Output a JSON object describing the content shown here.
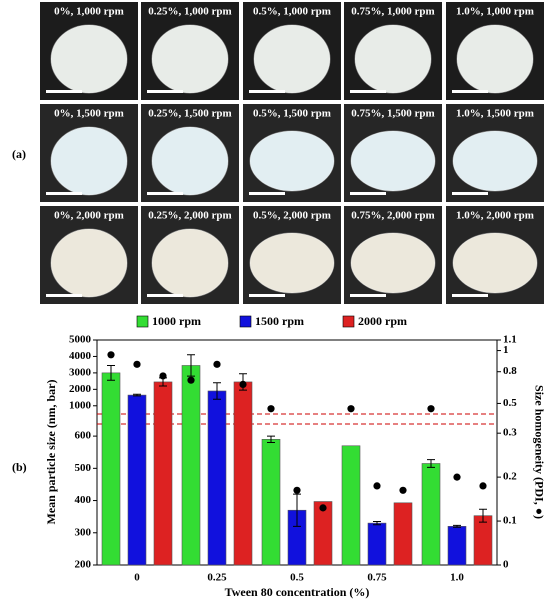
{
  "panel_a": {
    "label": "(a)",
    "rows": [
      [
        "0%, 1,000 rpm",
        "0.25%, 1,000 rpm",
        "0.5%, 1,000 rpm",
        "0.75%, 1,000 rpm",
        "1.0%, 1,000 rpm"
      ],
      [
        "0%, 1,500 rpm",
        "0.25%, 1,500 rpm",
        "0.5%, 1,500 rpm",
        "0.75%, 1,500 rpm",
        "1.0%, 1,500 rpm"
      ],
      [
        "0%, 2,000 rpm",
        "0.25%, 2,000 rpm",
        "0.5%, 2,000 rpm",
        "0.75%, 2,000 rpm",
        "1.0%, 2,000 rpm"
      ]
    ]
  },
  "chart_data": {
    "type": "bar",
    "panel_label": "(b)",
    "x_label": "Tween 80 concentration (%)",
    "y_label": "Mean particle size (nm, bar)",
    "y2_label": "Size homogeneity (PDI, ●)",
    "categories": [
      "0",
      "0.25",
      "0.5",
      "0.75",
      "1.0"
    ],
    "y_segments": [
      {
        "ylim": [
          200,
          650
        ],
        "yticks": [
          200,
          300,
          400,
          500,
          600
        ]
      },
      {
        "ylim": [
          500,
          5000
        ],
        "yticks": [
          1000,
          2000,
          3000,
          4000,
          5000
        ]
      }
    ],
    "y2_segments": [
      {
        "ylim": [
          0,
          0.33
        ],
        "yticks": [
          0,
          0.1,
          0.2,
          0.3
        ]
      },
      {
        "ylim": [
          0.4,
          1.1
        ],
        "yticks": [
          0.5,
          0.8,
          1,
          1.1
        ]
      }
    ],
    "series": [
      {
        "name": "1000 rpm",
        "color": "#33dd33",
        "values": [
          3000,
          3450,
          590,
          570,
          515
        ],
        "errors": [
          450,
          650,
          10,
          0,
          12
        ],
        "pdi": [
          0.96,
          0.72,
          0.45,
          0.45,
          0.45
        ]
      },
      {
        "name": "1500 rpm",
        "color": "#1111dd",
        "values": [
          1650,
          1900,
          370,
          330,
          320
        ],
        "errors": [
          50,
          500,
          50,
          5,
          3
        ],
        "pdi": [
          0.87,
          0.87,
          0.17,
          0.18,
          0.2
        ]
      },
      {
        "name": "2000 rpm",
        "color": "#dd2222",
        "values": [
          2450,
          2450,
          397,
          393,
          353
        ],
        "errors": [
          250,
          500,
          0,
          0,
          20
        ],
        "pdi": [
          0.76,
          0.68,
          0.13,
          0.17,
          0.18
        ]
      }
    ]
  }
}
